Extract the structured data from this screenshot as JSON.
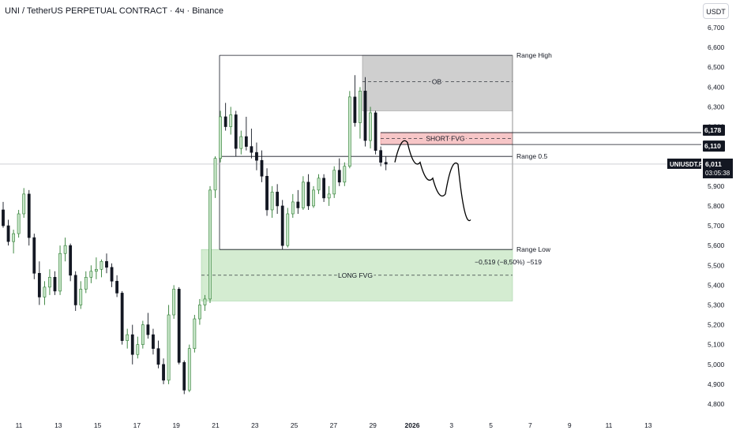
{
  "header": {
    "title": "UNI / TetherUS PERPETUAL CONTRACT · 4ч · Binance",
    "currency_button": "USDT"
  },
  "chart_data": {
    "type": "candlestick",
    "symbol": "UNIUSDT.P",
    "last_price": "6,011",
    "countdown": "03:05:38",
    "ylim": [
      4750,
      6780
    ],
    "y_ticks": [
      "6,700",
      "6,600",
      "6,500",
      "6,400",
      "6,300",
      "6,200",
      "6,100",
      "6,000",
      "5,900",
      "5,800",
      "5,700",
      "5,600",
      "5,500",
      "5,400",
      "5,300",
      "5,200",
      "5,100",
      "5,000",
      "4,900",
      "4,800"
    ],
    "x_tick_labels": [
      "11",
      "13",
      "15",
      "17",
      "19",
      "21",
      "23",
      "25",
      "27",
      "29",
      "2026",
      "3",
      "5",
      "7",
      "9",
      "11",
      "13"
    ],
    "candles": [
      [
        5780,
        5820,
        5690,
        5700
      ],
      [
        5700,
        5730,
        5600,
        5620
      ],
      [
        5620,
        5680,
        5560,
        5660
      ],
      [
        5660,
        5780,
        5640,
        5760
      ],
      [
        5760,
        5890,
        5740,
        5860
      ],
      [
        5860,
        5880,
        5600,
        5640
      ],
      [
        5640,
        5660,
        5430,
        5460
      ],
      [
        5460,
        5520,
        5300,
        5340
      ],
      [
        5340,
        5420,
        5300,
        5390
      ],
      [
        5390,
        5480,
        5350,
        5440
      ],
      [
        5440,
        5470,
        5350,
        5370
      ],
      [
        5370,
        5600,
        5350,
        5560
      ],
      [
        5560,
        5640,
        5520,
        5600
      ],
      [
        5600,
        5610,
        5420,
        5450
      ],
      [
        5450,
        5470,
        5270,
        5300
      ],
      [
        5300,
        5420,
        5280,
        5380
      ],
      [
        5380,
        5470,
        5360,
        5440
      ],
      [
        5440,
        5500,
        5410,
        5470
      ],
      [
        5470,
        5540,
        5430,
        5480
      ],
      [
        5480,
        5530,
        5440,
        5520
      ],
      [
        5520,
        5560,
        5460,
        5490
      ],
      [
        5490,
        5510,
        5390,
        5420
      ],
      [
        5420,
        5450,
        5340,
        5360
      ],
      [
        5360,
        5370,
        5100,
        5120
      ],
      [
        5120,
        5180,
        5080,
        5150
      ],
      [
        5150,
        5200,
        5000,
        5050
      ],
      [
        5050,
        5140,
        5030,
        5100
      ],
      [
        5100,
        5220,
        5080,
        5200
      ],
      [
        5200,
        5260,
        5130,
        5150
      ],
      [
        5150,
        5180,
        5050,
        5080
      ],
      [
        5080,
        5120,
        4980,
        5000
      ],
      [
        5000,
        5030,
        4900,
        4920
      ],
      [
        4920,
        5300,
        4900,
        5250
      ],
      [
        5250,
        5400,
        5230,
        5380
      ],
      [
        5380,
        5390,
        5000,
        5010
      ],
      [
        5010,
        5020,
        4850,
        4870
      ],
      [
        4870,
        5100,
        4860,
        5080
      ],
      [
        5080,
        5250,
        5060,
        5230
      ],
      [
        5230,
        5330,
        5200,
        5300
      ],
      [
        5300,
        5350,
        5270,
        5330
      ],
      [
        5330,
        5900,
        5310,
        5880
      ],
      [
        5880,
        6050,
        5840,
        6040
      ],
      [
        6040,
        6280,
        6020,
        6250
      ],
      [
        6250,
        6320,
        6180,
        6200
      ],
      [
        6200,
        6300,
        6160,
        6260
      ],
      [
        6260,
        6280,
        6050,
        6090
      ],
      [
        6090,
        6180,
        6060,
        6150
      ],
      [
        6150,
        6250,
        6080,
        6100
      ],
      [
        6100,
        6190,
        6040,
        6070
      ],
      [
        6070,
        6120,
        5980,
        6030
      ],
      [
        6030,
        6080,
        5920,
        5950
      ],
      [
        5950,
        5990,
        5750,
        5780
      ],
      [
        5780,
        5900,
        5740,
        5870
      ],
      [
        5870,
        5910,
        5760,
        5800
      ],
      [
        5800,
        5830,
        5580,
        5600
      ],
      [
        5600,
        5790,
        5590,
        5760
      ],
      [
        5760,
        5860,
        5740,
        5820
      ],
      [
        5820,
        5880,
        5760,
        5790
      ],
      [
        5790,
        5950,
        5780,
        5920
      ],
      [
        5920,
        5960,
        5780,
        5800
      ],
      [
        5800,
        5900,
        5790,
        5880
      ],
      [
        5880,
        5960,
        5860,
        5940
      ],
      [
        5940,
        5960,
        5820,
        5840
      ],
      [
        5840,
        5900,
        5800,
        5860
      ],
      [
        5860,
        6000,
        5840,
        5980
      ],
      [
        5980,
        6040,
        5900,
        5920
      ],
      [
        5920,
        6020,
        5900,
        6000
      ],
      [
        6000,
        6380,
        5990,
        6350
      ],
      [
        6350,
        6460,
        6200,
        6220
      ],
      [
        6220,
        6400,
        6140,
        6380
      ],
      [
        6380,
        6450,
        6100,
        6130
      ],
      [
        6130,
        6300,
        6090,
        6270
      ],
      [
        6270,
        6280,
        6060,
        6080
      ],
      [
        6080,
        6100,
        6000,
        6020
      ],
      [
        6020,
        6050,
        5980,
        6011
      ]
    ],
    "annotations": {
      "range_high": {
        "price": 6560,
        "label": "Range High"
      },
      "range_mid": {
        "price": 6050,
        "label": "Range 0.5"
      },
      "range_low": {
        "price": 5580,
        "label": "Range Low"
      },
      "ob_zone": {
        "top": 6560,
        "bottom": 6280,
        "label": "OB"
      },
      "short_fvg": {
        "top": 6170,
        "bottom": 6110,
        "label": "SHORT FVG"
      },
      "long_fvg": {
        "top": 5580,
        "bottom": 5320,
        "label": "LONG FVG"
      },
      "measure_label": "−0,519 (−8,50%) −519",
      "price_badges": [
        "6,178",
        "6,110"
      ]
    },
    "projection": [
      [
        6020,
        6120
      ],
      [
        6160,
        6020
      ],
      [
        6080,
        5940
      ],
      [
        5900,
        5860
      ],
      [
        5940,
        6010
      ],
      [
        5900,
        5730
      ]
    ],
    "colors": {
      "up": "#26a69a",
      "up_fill": "#c8e6c9",
      "down": "#131722",
      "ob_fill": "#cfcfcf",
      "short_fvg_fill": "#f7c6c7",
      "long_fvg_fill": "#d4ecd1",
      "grid_text": "#131722"
    }
  }
}
